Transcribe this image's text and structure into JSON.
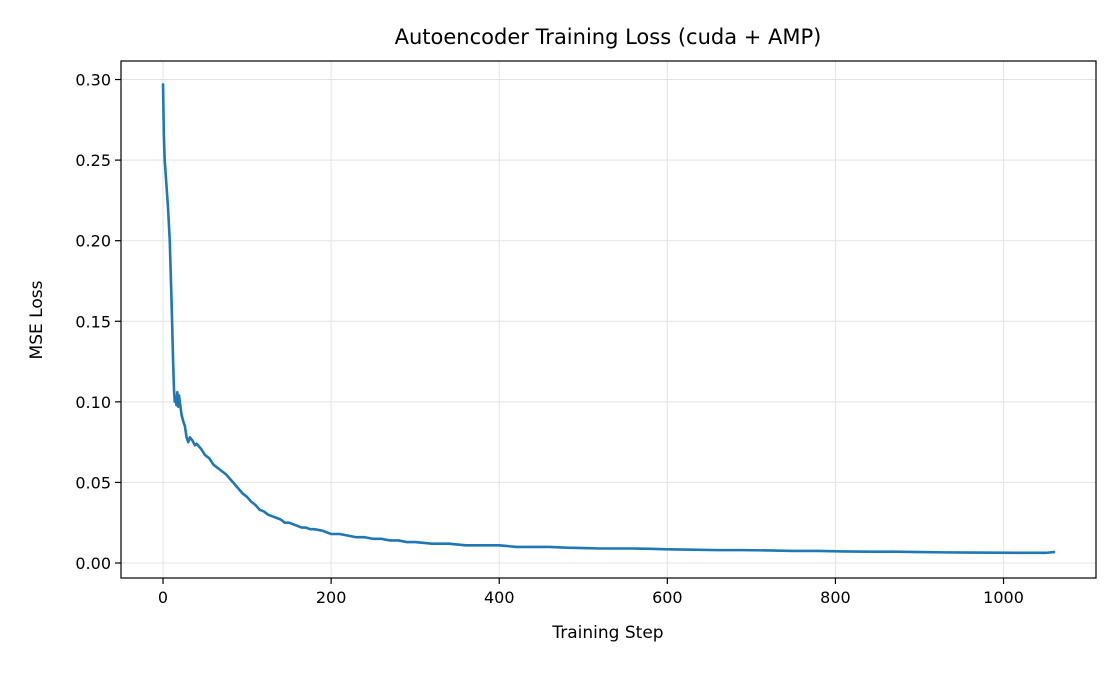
{
  "chart_data": {
    "type": "line",
    "title": "Autoencoder Training Loss (cuda + AMP)",
    "xlabel": "Training Step",
    "ylabel": "MSE Loss",
    "xlim": [
      -50,
      1110
    ],
    "ylim": [
      -0.0093,
      0.3115
    ],
    "xticks": [
      0,
      200,
      400,
      600,
      800,
      1000
    ],
    "xtick_labels": [
      "0",
      "200",
      "400",
      "600",
      "800",
      "1000"
    ],
    "yticks": [
      0.0,
      0.05,
      0.1,
      0.15,
      0.2,
      0.25,
      0.3
    ],
    "ytick_labels": [
      "0.00",
      "0.05",
      "0.10",
      "0.15",
      "0.20",
      "0.25",
      "0.30"
    ],
    "grid": true,
    "legend": "none",
    "colors": {
      "series": "#1f77b4",
      "grid": "#e3e3e3",
      "axes": "#000000"
    },
    "series": [
      {
        "x": [
          0,
          1,
          2,
          4,
          6,
          8,
          10,
          12,
          13,
          14,
          15,
          16,
          17,
          18,
          19,
          20,
          22,
          24,
          26,
          28,
          30,
          32,
          35,
          38,
          40,
          45,
          50,
          55,
          60,
          65,
          70,
          75,
          80,
          85,
          90,
          95,
          100,
          105,
          110,
          115,
          120,
          125,
          130,
          135,
          140,
          145,
          150,
          155,
          160,
          165,
          170,
          175,
          180,
          190,
          200,
          210,
          220,
          230,
          240,
          250,
          260,
          270,
          280,
          290,
          300,
          320,
          340,
          360,
          380,
          400,
          420,
          440,
          460,
          480,
          500,
          520,
          540,
          560,
          580,
          600,
          630,
          660,
          690,
          720,
          750,
          780,
          810,
          840,
          870,
          900,
          930,
          960,
          990,
          1020,
          1050,
          1060
        ],
        "y": [
          0.297,
          0.265,
          0.25,
          0.235,
          0.22,
          0.2,
          0.165,
          0.125,
          0.108,
          0.1,
          0.103,
          0.098,
          0.106,
          0.097,
          0.104,
          0.1,
          0.092,
          0.088,
          0.085,
          0.078,
          0.075,
          0.078,
          0.076,
          0.073,
          0.074,
          0.071,
          0.067,
          0.065,
          0.061,
          0.059,
          0.057,
          0.055,
          0.052,
          0.049,
          0.046,
          0.043,
          0.041,
          0.038,
          0.036,
          0.033,
          0.032,
          0.03,
          0.029,
          0.028,
          0.027,
          0.025,
          0.025,
          0.024,
          0.023,
          0.022,
          0.022,
          0.021,
          0.021,
          0.02,
          0.018,
          0.018,
          0.017,
          0.016,
          0.016,
          0.015,
          0.015,
          0.014,
          0.014,
          0.013,
          0.013,
          0.012,
          0.012,
          0.011,
          0.011,
          0.011,
          0.01,
          0.01,
          0.01,
          0.0095,
          0.0093,
          0.009,
          0.009,
          0.009,
          0.0088,
          0.0085,
          0.0083,
          0.008,
          0.008,
          0.0078,
          0.0075,
          0.0075,
          0.0072,
          0.007,
          0.007,
          0.0068,
          0.0066,
          0.0065,
          0.0064,
          0.0063,
          0.0063,
          0.0068
        ]
      }
    ]
  }
}
